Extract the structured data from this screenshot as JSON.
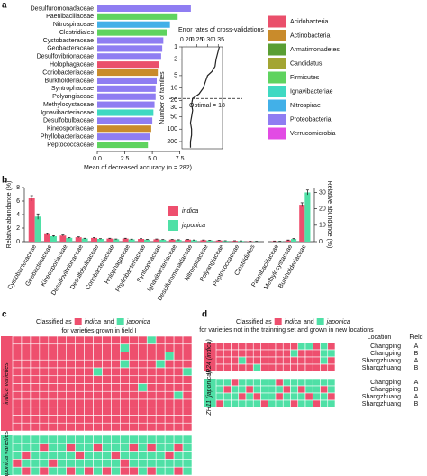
{
  "chart_data": [
    {
      "type": "bar",
      "orientation": "horizontal",
      "panel_label": "a",
      "categories": [
        "Desulfuromonadaceae",
        "Paenibacillaceae",
        "Nitrospiraceae",
        "Clostridiales",
        "Cystobacteraceae",
        "Geobacteraceae",
        "Desulfovibrionaceae",
        "Holophagaceae",
        "Coriobacteriaceae",
        "Burkholderiaceae",
        "Syntrophaceae",
        "Polyangiaceae",
        "Methylocystaceae",
        "Ignavibacteriaceae",
        "Desulfobulbaceae",
        "Kineosporiaceae",
        "Phyllobacteriaceae",
        "Peptococcaceae"
      ],
      "values": [
        8.5,
        7.3,
        6.6,
        6.3,
        6.0,
        5.9,
        5.8,
        5.6,
        5.5,
        5.4,
        5.3,
        5.3,
        5.2,
        5.1,
        5.0,
        4.9,
        4.8,
        4.6
      ],
      "colors": [
        "#8f7df2",
        "#5fd35f",
        "#42b0e8",
        "#5fd35f",
        "#8f7df2",
        "#8f7df2",
        "#8f7df2",
        "#ea4f6b",
        "#c98b2b",
        "#8f7df2",
        "#8f7df2",
        "#8f7df2",
        "#8f7df2",
        "#3fd9c2",
        "#8f7df2",
        "#c98b2b",
        "#8f7df2",
        "#5fd35f"
      ],
      "xlabel": "Mean of decreased accuracy (n = 282)",
      "xlim": [
        0,
        9
      ],
      "xticks": [
        {
          "value": 0,
          "label": "0.0"
        },
        2.5,
        {
          "value": 5,
          "label": "5.0"
        },
        7.5
      ],
      "legend_items": {
        "names": [
          "Acidobacteria",
          "Actinobacteria",
          "Armatimonadetes",
          "Candidatus",
          "Firmicutes",
          "Ignavibacteriae",
          "Nitrospirae",
          "Proteobacteria",
          "Verrucomicrobia"
        ],
        "colors": [
          "#ea4f6b",
          "#c98b2b",
          "#5a9e33",
          "#a3a532",
          "#5fd35f",
          "#3fd9c2",
          "#42b0e8",
          "#8f7df2",
          "#e24be4"
        ]
      }
    },
    {
      "type": "line",
      "xlabel": "Error rates of cross-validations",
      "ylabel": "Number of families",
      "x": [
        0.355,
        0.34,
        0.335,
        0.32,
        0.3,
        0.29,
        0.28,
        0.26,
        0.23,
        0.225,
        0.23,
        0.225,
        0.22,
        0.225,
        0.225,
        0.22,
        0.22
      ],
      "y": [
        1,
        2,
        3,
        4,
        5,
        7,
        10,
        14,
        18,
        25,
        35,
        50,
        70,
        100,
        140,
        200,
        282
      ],
      "color": "#222222",
      "xlim": [
        0.18,
        0.37
      ],
      "xticks": [
        {
          "value": 0.2,
          "label": "0.20"
        },
        0.25,
        {
          "value": 0.3,
          "label": "0.30"
        },
        0.35
      ],
      "ylim": [
        1,
        300
      ],
      "log_y": true,
      "y_inverted": true,
      "yticks": [
        1,
        2,
        5,
        10,
        20,
        30,
        50,
        100,
        200
      ],
      "optimal": 18,
      "annotation": "Optimal = 18"
    },
    {
      "type": "bar",
      "orientation": "vertical",
      "panel_label": "b",
      "y_axis_side": "left",
      "ylabel": "Relative abundance (%)",
      "categories": [
        "Cystobacteraceae",
        "Geobacteraceae",
        "Kineosporiaceae",
        "Desulfovibrionaceae",
        "Desulfobulbaceae",
        "Coriobacteriaceae",
        "Holophagaceae",
        "Phyllobacteriaceae",
        "Syntrophaceae",
        "Ignavibacteriaceae",
        "Desulfuromonadaceae",
        "Nitrospiraceae",
        "Polyangiaceae",
        "Peptococcaceae",
        "Clostridiales"
      ],
      "series": [
        {
          "name": "indica",
          "color": "#ee4f6e",
          "values": [
            6.4,
            1.1,
            0.9,
            0.65,
            0.55,
            0.45,
            0.45,
            0.4,
            0.35,
            0.3,
            0.3,
            0.22,
            0.18,
            0.12,
            0.06
          ],
          "errors": [
            0.4,
            0.1,
            0.08,
            0.06,
            0.05,
            0.05,
            0.05,
            0.04,
            0.04,
            0.03,
            0.03,
            0.03,
            0.02,
            0.02,
            0.01
          ]
        },
        {
          "name": "japonica",
          "color": "#4fe0a6",
          "values": [
            3.7,
            0.8,
            0.55,
            0.45,
            0.4,
            0.35,
            0.33,
            0.3,
            0.28,
            0.25,
            0.22,
            0.18,
            0.12,
            0.1,
            0.05
          ],
          "errors": [
            0.4,
            0.08,
            0.06,
            0.05,
            0.04,
            0.04,
            0.04,
            0.03,
            0.03,
            0.03,
            0.03,
            0.02,
            0.02,
            0.02,
            0.01
          ]
        }
      ],
      "ylim": [
        0,
        8
      ],
      "yticks": [
        0,
        2,
        4,
        6,
        8
      ]
    },
    {
      "type": "bar",
      "orientation": "vertical",
      "y_axis_side": "right",
      "ylabel": "Relative abundance (%)",
      "categories": [
        "Paenibacillaceae",
        "Methylocystaceae",
        "Burkholderiaceae"
      ],
      "series": [
        {
          "color": "#ee4f6e",
          "values": [
            0.3,
            0.8,
            22.5
          ],
          "errors": [
            0.1,
            0.2,
            1.2
          ]
        },
        {
          "color": "#4fe0a6",
          "values": [
            0.2,
            1.6,
            30
          ],
          "errors": [
            0.05,
            0.3,
            1.5
          ]
        }
      ],
      "ylim": [
        0,
        33
      ],
      "yticks": [
        0,
        10,
        20,
        30
      ]
    },
    {
      "type": "heatmap",
      "panel_label": "c",
      "title_prefix": "Classified as",
      "classes": [
        "indica",
        "japonica"
      ],
      "conjunction": "and",
      "colors": [
        "#ee4f6e",
        "#4fe0a6"
      ],
      "subtitle": "for varieties grown in field I",
      "groups": [
        {
          "name": "indica varieties",
          "rows": [
            [
              0,
              0,
              0,
              0,
              0,
              0,
              0,
              0,
              0,
              0,
              0,
              0,
              0,
              0,
              0,
              1,
              0,
              0,
              0,
              0
            ],
            [
              0,
              0,
              0,
              0,
              0,
              0,
              0,
              0,
              0,
              0,
              0,
              0,
              1,
              0,
              0,
              0,
              0,
              0,
              0,
              0
            ],
            [
              0,
              0,
              0,
              0,
              0,
              0,
              0,
              0,
              0,
              0,
              0,
              0,
              0,
              0,
              0,
              0,
              0,
              1,
              0,
              0
            ],
            [
              0,
              0,
              0,
              0,
              0,
              0,
              0,
              0,
              0,
              0,
              0,
              0,
              1,
              0,
              0,
              0,
              1,
              0,
              0,
              0
            ],
            [
              0,
              0,
              0,
              0,
              0,
              0,
              0,
              0,
              0,
              1,
              0,
              0,
              0,
              0,
              0,
              0,
              0,
              0,
              0,
              1
            ],
            [
              0,
              0,
              0,
              0,
              0,
              0,
              0,
              0,
              0,
              0,
              0,
              0,
              0,
              0,
              0,
              0,
              0,
              0,
              0,
              0
            ],
            [
              0,
              0,
              0,
              0,
              0,
              0,
              0,
              0,
              0,
              0,
              0,
              0,
              0,
              0,
              1,
              0,
              0,
              0,
              0,
              0
            ],
            [
              0,
              0,
              0,
              0,
              0,
              0,
              0,
              0,
              0,
              0,
              0,
              0,
              0,
              0,
              0,
              0,
              0,
              0,
              1,
              0
            ],
            [
              0,
              0,
              0,
              0,
              0,
              0,
              0,
              0,
              0,
              0,
              0,
              0,
              0,
              0,
              0,
              0,
              0,
              0,
              0,
              0
            ],
            [
              0,
              0,
              0,
              0,
              0,
              0,
              0,
              0,
              0,
              0,
              0,
              0,
              0,
              0,
              0,
              0,
              0,
              0,
              0,
              0
            ],
            [
              0,
              0,
              0,
              0,
              0,
              0,
              0,
              0,
              0,
              0,
              0,
              0,
              0,
              0,
              0,
              0,
              0,
              0,
              0,
              0
            ],
            [
              0,
              0,
              0,
              0,
              0,
              0,
              0,
              0,
              0,
              0,
              0,
              0,
              0,
              0,
              0,
              0,
              0,
              0,
              0,
              0
            ]
          ]
        },
        {
          "name": "japonica varieties",
          "rows": [
            [
              1,
              1,
              1,
              1,
              1,
              1,
              1,
              1,
              1,
              1,
              1,
              1,
              1,
              1,
              1,
              1,
              1,
              1,
              1,
              1
            ],
            [
              1,
              1,
              1,
              0,
              1,
              1,
              0,
              1,
              1,
              0,
              1,
              1,
              1,
              0,
              1,
              0,
              1,
              1,
              0,
              1
            ],
            [
              1,
              0,
              1,
              1,
              1,
              1,
              1,
              0,
              1,
              1,
              1,
              0,
              1,
              1,
              1,
              1,
              1,
              0,
              1,
              1
            ],
            [
              0,
              1,
              1,
              1,
              0,
              1,
              1,
              1,
              1,
              1,
              1,
              1,
              0,
              1,
              1,
              1,
              1,
              1,
              1,
              1
            ],
            [
              1,
              0,
              1,
              0,
              1,
              1,
              0,
              1,
              0,
              1,
              0,
              1,
              0,
              0,
              1,
              0,
              1,
              1,
              0,
              1
            ]
          ]
        }
      ]
    },
    {
      "type": "heatmap",
      "panel_label": "d",
      "title_prefix": "Classified as",
      "classes": [
        "indica",
        "japonica"
      ],
      "conjunction": "and",
      "colors": [
        "#ee4f6e",
        "#4fe0a6"
      ],
      "subtitle": "for varieties not in the trainning set and grown in new locations",
      "row_header": [
        "Location",
        "Field"
      ],
      "groups": [
        {
          "name": "IR24 (indica)",
          "row_labels": [
            [
              "Changping",
              "A"
            ],
            [
              "Changping",
              "B"
            ],
            [
              "Shangzhuang",
              "A"
            ],
            [
              "Shangzhuang",
              "B"
            ]
          ],
          "rows": [
            [
              0,
              0,
              0,
              0,
              0,
              0,
              0,
              0,
              0,
              0,
              0,
              1,
              1,
              0,
              1,
              0
            ],
            [
              0,
              0,
              0,
              0,
              0,
              0,
              0,
              0,
              0,
              0,
              1,
              0,
              0,
              0,
              1,
              1
            ],
            [
              0,
              0,
              0,
              1,
              0,
              0,
              0,
              0,
              0,
              0,
              0,
              0,
              0,
              0,
              1,
              0
            ],
            [
              0,
              0,
              0,
              0,
              0,
              1,
              0,
              0,
              0,
              0,
              0,
              0,
              0,
              0,
              0,
              0
            ]
          ]
        },
        {
          "name": "ZH11 (japonica)",
          "row_labels": [
            [
              "Changping",
              "A"
            ],
            [
              "Changping",
              "B"
            ],
            [
              "Shangzhuang",
              "A"
            ],
            [
              "Shangzhuang",
              "B"
            ]
          ],
          "rows": [
            [
              1,
              1,
              0,
              1,
              1,
              1,
              1,
              1,
              0,
              1,
              1,
              1,
              1,
              1,
              1,
              1
            ],
            [
              1,
              0,
              1,
              1,
              0,
              1,
              1,
              1,
              1,
              0,
              1,
              0,
              1,
              1,
              0,
              1
            ],
            [
              1,
              1,
              1,
              0,
              1,
              0,
              1,
              1,
              0,
              1,
              1,
              1,
              0,
              1,
              1,
              0
            ],
            [
              0,
              1,
              1,
              1,
              1,
              1,
              0,
              1,
              1,
              1,
              0,
              1,
              1,
              0,
              1,
              1
            ]
          ]
        }
      ]
    }
  ]
}
